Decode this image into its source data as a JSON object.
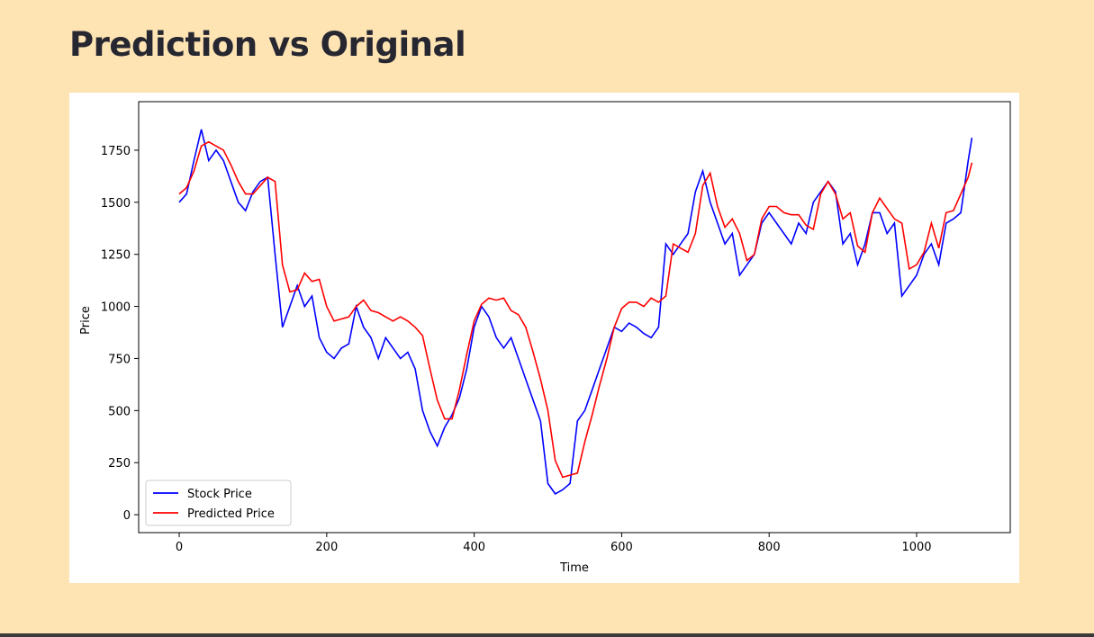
{
  "header": {
    "title": "Prediction vs Original"
  },
  "chart_data": {
    "type": "line",
    "xlabel": "Time",
    "ylabel": "Price",
    "x": [
      0,
      10,
      20,
      30,
      40,
      50,
      60,
      70,
      80,
      90,
      100,
      110,
      120,
      130,
      140,
      150,
      160,
      170,
      180,
      190,
      200,
      210,
      220,
      230,
      240,
      250,
      260,
      270,
      280,
      290,
      300,
      310,
      320,
      330,
      340,
      350,
      360,
      370,
      380,
      390,
      400,
      410,
      420,
      430,
      440,
      450,
      460,
      470,
      480,
      490,
      500,
      510,
      520,
      530,
      540,
      550,
      560,
      570,
      580,
      590,
      600,
      610,
      620,
      630,
      640,
      650,
      660,
      670,
      680,
      690,
      700,
      710,
      720,
      730,
      740,
      750,
      760,
      770,
      780,
      790,
      800,
      810,
      820,
      830,
      840,
      850,
      860,
      870,
      880,
      890,
      900,
      910,
      920,
      930,
      940,
      950,
      960,
      970,
      980,
      990,
      1000,
      1010,
      1020,
      1030,
      1040,
      1050,
      1060,
      1070,
      1075
    ],
    "series": [
      {
        "name": "Stock Price",
        "color": "#0000ff",
        "values": [
          1500,
          1540,
          1700,
          1850,
          1700,
          1750,
          1700,
          1600,
          1500,
          1460,
          1550,
          1600,
          1620,
          1250,
          900,
          1000,
          1100,
          1000,
          1050,
          850,
          780,
          750,
          800,
          820,
          1000,
          900,
          850,
          750,
          850,
          800,
          750,
          780,
          700,
          500,
          400,
          330,
          420,
          480,
          560,
          700,
          900,
          1000,
          950,
          850,
          800,
          850,
          750,
          650,
          550,
          450,
          150,
          100,
          120,
          150,
          450,
          500,
          600,
          700,
          800,
          900,
          880,
          920,
          900,
          870,
          850,
          900,
          1300,
          1250,
          1300,
          1350,
          1550,
          1650,
          1500,
          1400,
          1300,
          1350,
          1150,
          1200,
          1250,
          1400,
          1450,
          1400,
          1350,
          1300,
          1400,
          1350,
          1500,
          1550,
          1600,
          1550,
          1300,
          1350,
          1200,
          1300,
          1450,
          1450,
          1350,
          1400,
          1050,
          1100,
          1150,
          1250,
          1300,
          1200,
          1400,
          1420,
          1450,
          1700,
          1810
        ]
      },
      {
        "name": "Predicted Price",
        "color": "#ff0000",
        "values": [
          1540,
          1570,
          1650,
          1770,
          1790,
          1770,
          1750,
          1680,
          1600,
          1540,
          1540,
          1580,
          1620,
          1600,
          1200,
          1070,
          1080,
          1160,
          1120,
          1130,
          1000,
          930,
          940,
          950,
          1000,
          1030,
          980,
          970,
          950,
          930,
          950,
          930,
          900,
          860,
          700,
          550,
          460,
          460,
          600,
          770,
          930,
          1010,
          1040,
          1030,
          1040,
          980,
          960,
          900,
          780,
          650,
          500,
          260,
          180,
          190,
          200,
          350,
          480,
          620,
          750,
          900,
          990,
          1020,
          1020,
          1000,
          1040,
          1020,
          1050,
          1300,
          1280,
          1260,
          1350,
          1580,
          1640,
          1480,
          1380,
          1420,
          1350,
          1220,
          1250,
          1420,
          1480,
          1480,
          1450,
          1440,
          1440,
          1390,
          1370,
          1540,
          1600,
          1540,
          1420,
          1450,
          1290,
          1260,
          1450,
          1520,
          1470,
          1420,
          1400,
          1180,
          1200,
          1260,
          1400,
          1280,
          1450,
          1460,
          1540,
          1620,
          1690
        ]
      }
    ],
    "xlim": [
      -55,
      1127
    ],
    "ylim": [
      -86,
      1983
    ],
    "xticks": [
      0,
      200,
      400,
      600,
      800,
      1000
    ],
    "yticks": [
      0,
      250,
      500,
      750,
      1000,
      1250,
      1500,
      1750
    ],
    "legend": "lower left"
  }
}
